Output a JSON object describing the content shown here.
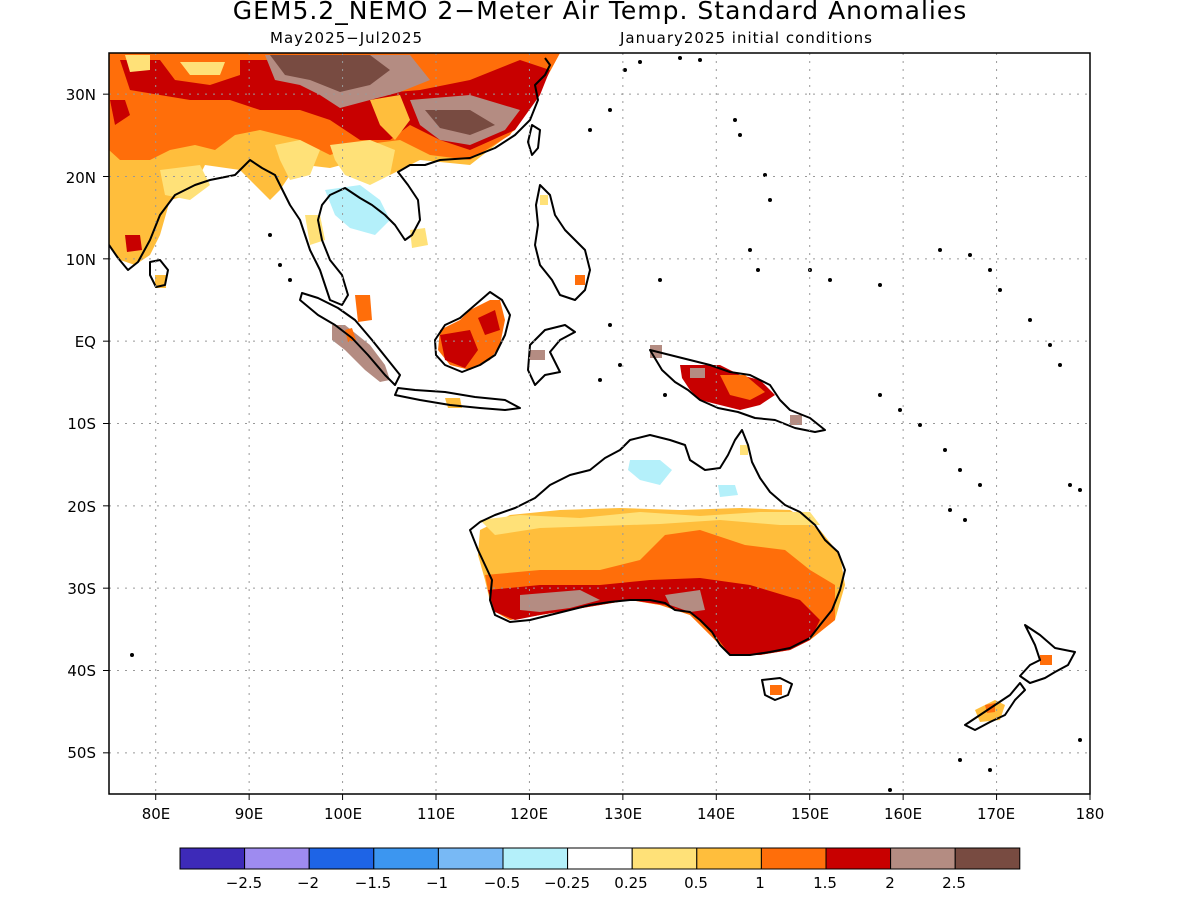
{
  "title": "GEM5.2_NEMO 2−Meter Air Temp. Standard Anomalies",
  "subtitle_left": "May2025−Jul2025",
  "subtitle_right": "January2025 initial conditions",
  "map": {
    "lon_range": [
      75,
      180
    ],
    "lat_range": [
      -55,
      35
    ],
    "lon_labels": [
      "80E",
      "90E",
      "100E",
      "110E",
      "120E",
      "130E",
      "140E",
      "150E",
      "160E",
      "170E",
      "180"
    ],
    "lat_labels": [
      "30N",
      "20N",
      "10N",
      "EQ",
      "10S",
      "20S",
      "30S",
      "40S",
      "50S"
    ],
    "grid_lons": [
      80,
      90,
      100,
      110,
      120,
      130,
      140,
      150,
      160,
      170
    ],
    "grid_lats": [
      30,
      20,
      10,
      0,
      -10,
      -20,
      -30,
      -40,
      -50
    ]
  },
  "colorbar": {
    "colors": [
      "#3d2ab8",
      "#9e8bf0",
      "#1e64e6",
      "#3c96f0",
      "#78b9f5",
      "#b4f0fa",
      "#ffffff",
      "#ffe178",
      "#ffbe3c",
      "#ff6e0a",
      "#c80000",
      "#b48c82",
      "#784b41"
    ],
    "labels": [
      "−2.5",
      "−2",
      "−1.5",
      "−1",
      "−0.5",
      "−0.25",
      "0.25",
      "0.5",
      "1",
      "1.5",
      "2",
      "2.5"
    ]
  }
}
